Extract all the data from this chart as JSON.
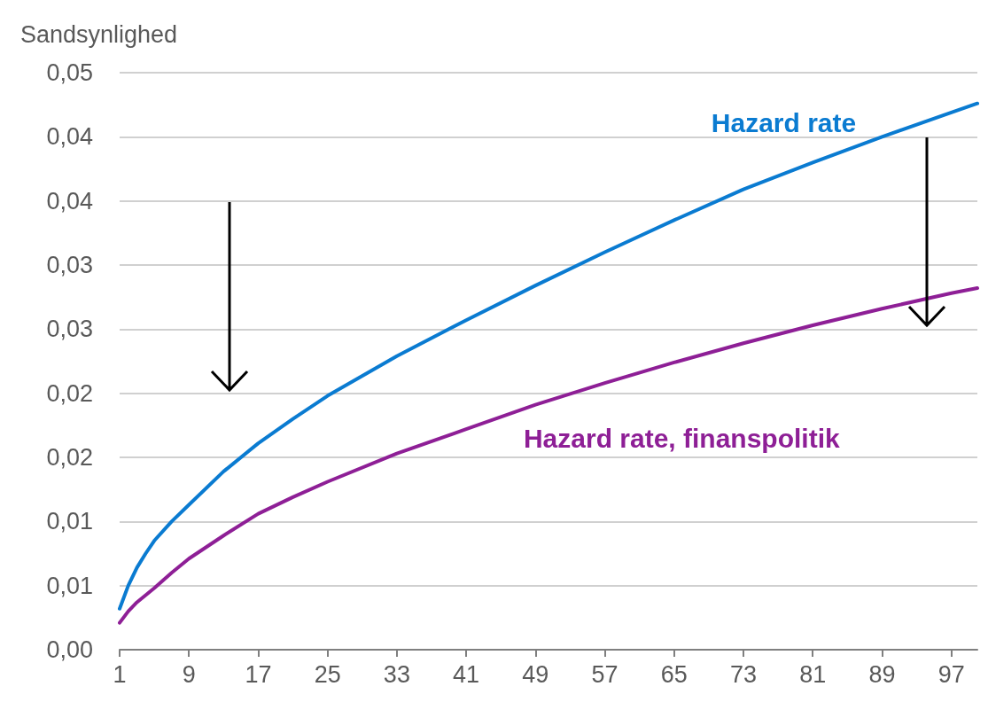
{
  "chart_data": {
    "type": "line",
    "ylabel": "Sandsynlighed",
    "xlim": [
      1,
      100
    ],
    "xticks": [
      1,
      9,
      17,
      25,
      33,
      41,
      49,
      57,
      65,
      73,
      81,
      89,
      97
    ],
    "ylim": [
      0,
      0.045
    ],
    "yticks": [
      {
        "value": 0,
        "label": "0,00"
      },
      {
        "value": 0.005,
        "label": "0,01"
      },
      {
        "value": 0.01,
        "label": "0,01"
      },
      {
        "value": 0.015,
        "label": "0,02"
      },
      {
        "value": 0.02,
        "label": "0,02"
      },
      {
        "value": 0.025,
        "label": "0,03"
      },
      {
        "value": 0.03,
        "label": "0,03"
      },
      {
        "value": 0.035,
        "label": "0,04"
      },
      {
        "value": 0.04,
        "label": "0,04"
      },
      {
        "value": 0.045,
        "label": "0,05"
      }
    ],
    "grid": "y",
    "legend": false,
    "marker": "none",
    "line_style": "solid",
    "series": [
      {
        "name": "Hazard rate",
        "color": "#0a7bd1",
        "x": [
          1,
          2,
          3,
          4,
          5,
          7,
          9,
          13,
          17,
          21,
          25,
          33,
          41,
          49,
          57,
          65,
          73,
          81,
          89,
          97,
          100
        ],
        "values": [
          0.0032,
          0.005,
          0.0064,
          0.0075,
          0.0085,
          0.01,
          0.0113,
          0.0139,
          0.0161,
          0.018,
          0.0198,
          0.0229,
          0.0257,
          0.0284,
          0.031,
          0.0335,
          0.0359,
          0.038,
          0.04,
          0.0419,
          0.0426
        ]
      },
      {
        "name": "Hazard rate, finanspolitik",
        "color": "#8e1f96",
        "x": [
          1,
          2,
          3,
          5,
          7,
          9,
          13,
          17,
          21,
          25,
          33,
          41,
          49,
          57,
          65,
          73,
          81,
          89,
          97,
          100
        ],
        "values": [
          0.0021,
          0.003,
          0.0037,
          0.0048,
          0.006,
          0.0071,
          0.0089,
          0.0106,
          0.0119,
          0.0131,
          0.0153,
          0.0172,
          0.0191,
          0.0208,
          0.0224,
          0.0239,
          0.0253,
          0.0266,
          0.0278,
          0.0282
        ]
      }
    ]
  }
}
